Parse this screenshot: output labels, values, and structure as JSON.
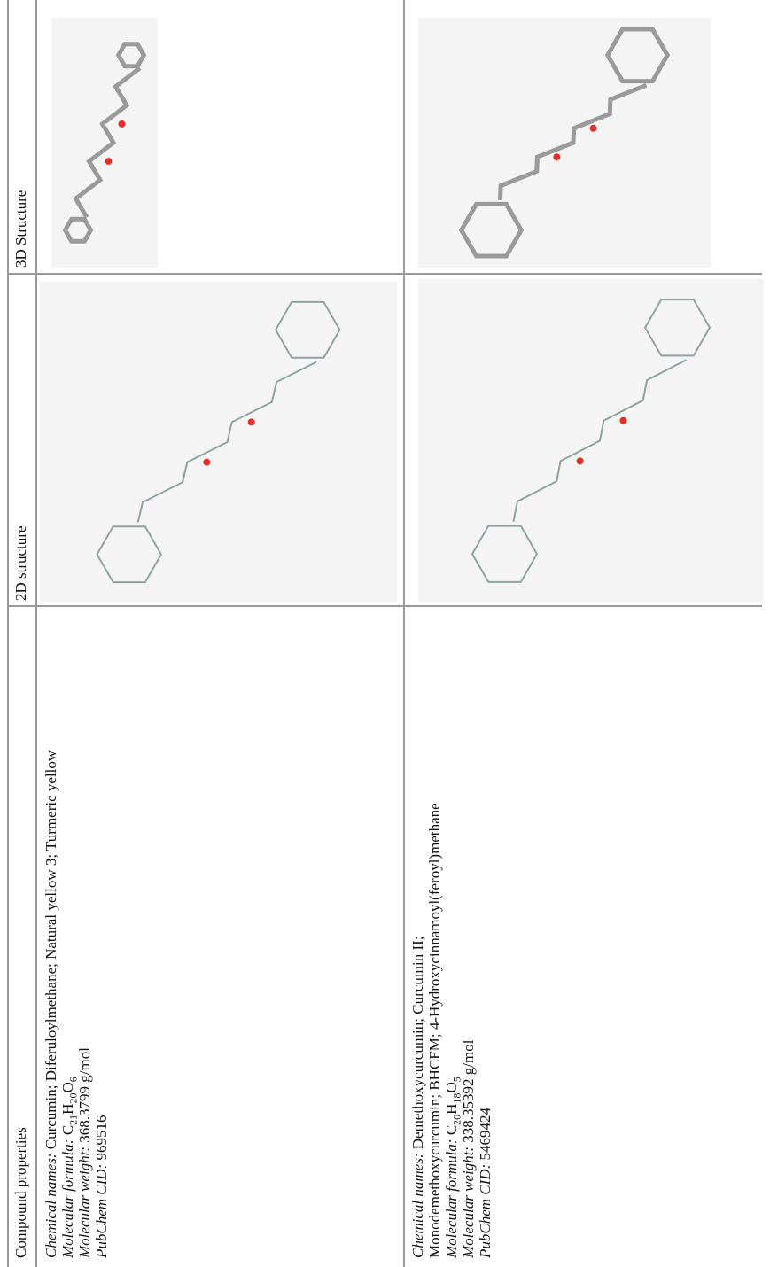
{
  "table": {
    "header": [
      "Compound properties",
      "2D structure",
      "3D Structure"
    ],
    "rows": [
      {
        "names": {
          "label": "Chemical names:",
          "value": "Curcumin; Diferuloylmethane; Natural yellow 3; Turmeric yellow"
        },
        "formula": {
          "label": "Molecular formula:",
          "parts": [
            "C",
            "21",
            "H",
            "20",
            "O",
            "6"
          ]
        },
        "weight": {
          "label": "Molecular weight:",
          "value": "368.3799 g/mol"
        },
        "cid": {
          "label": "PubChem CID:",
          "value": "969516"
        }
      },
      {
        "names": {
          "label": "Chemical names:",
          "value": "Demethoxycurcumin; Curcumin II; Monodemethoxycurcumin; BHCFM; 4-Hydroxycinnamoyl(feroyl)methane"
        },
        "formula": {
          "label": "Molecular formula:",
          "parts": [
            "C",
            "20",
            "H",
            "18",
            "O",
            "5"
          ]
        },
        "weight": {
          "label": "Molecular weight:",
          "value": "338.35392 g/mol"
        },
        "cid": {
          "label": "PubChem CID:",
          "value": "5469424"
        }
      }
    ]
  }
}
